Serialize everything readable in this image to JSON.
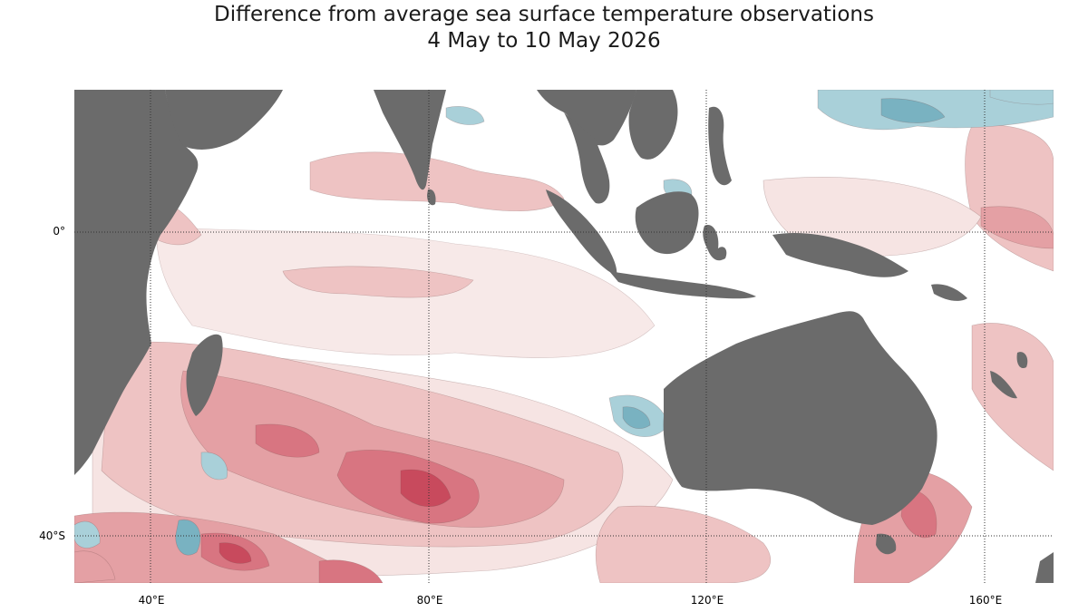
{
  "title": {
    "line1": "Difference from average sea surface temperature observations",
    "line2": "4 May to 10 May 2026"
  },
  "colors": {
    "land": "#6b6b6b",
    "ocean_neutral": "#ffffff",
    "warm_1": "#f6e4e3",
    "warm_2": "#eec3c3",
    "warm_3": "#e4a0a4",
    "warm_4": "#d87581",
    "warm_5": "#c84a5d",
    "cool_1": "#d5e8ec",
    "cool_2": "#a9d0d9",
    "cool_3": "#79b2c1",
    "grid": "#333333"
  },
  "map": {
    "projection": "equirectangular",
    "lon_range": [
      30,
      170
    ],
    "lat_range": [
      -50,
      20
    ],
    "gridlines_lon": [
      40,
      80,
      120,
      160
    ],
    "gridlines_lat": [
      0,
      -40
    ],
    "grid_style": "dotted"
  },
  "axes": {
    "x_ticks": [
      {
        "lon": 40,
        "label": "40°E"
      },
      {
        "lon": 80,
        "label": "80°E"
      },
      {
        "lon": 120,
        "label": "120°E"
      },
      {
        "lon": 160,
        "label": "160°E"
      }
    ],
    "y_ticks": [
      {
        "lat": 0,
        "label": "0°"
      },
      {
        "lat": -40,
        "label": "40°S"
      }
    ]
  },
  "anomaly_regions": [
    {
      "name": "southern-indian-ocean-warm-core",
      "anomaly": "strong-warm"
    },
    {
      "name": "agulhas-warm-patch",
      "anomaly": "strong-warm"
    },
    {
      "name": "tasman-sea-warm-patch",
      "anomaly": "strong-warm"
    },
    {
      "name": "bay-of-bengal-warm",
      "anomaly": "moderate-warm"
    },
    {
      "name": "western-pacific-cool",
      "anomaly": "mild-cool"
    },
    {
      "name": "south-atlantic-cool",
      "anomaly": "mild-cool"
    },
    {
      "name": "northwest-australia-cool",
      "anomaly": "mild-cool"
    }
  ]
}
